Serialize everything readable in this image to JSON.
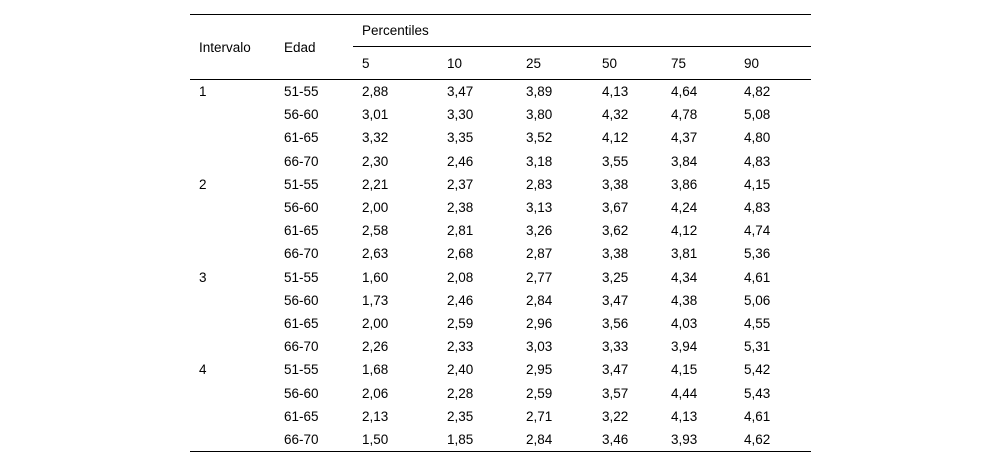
{
  "page": {
    "background": "#ffffff",
    "text_color": "#000000"
  },
  "table": {
    "headers": {
      "intervalo": "Intervalo",
      "edad": "Edad",
      "percentiles_group": "Percentiles",
      "percentile_levels": [
        "5",
        "10",
        "25",
        "50",
        "75",
        "90"
      ]
    },
    "rows": [
      {
        "intervalo": "1",
        "edad": "51-55",
        "values": [
          "2,88",
          "3,47",
          "3,89",
          "4,13",
          "4,64",
          "4,82"
        ]
      },
      {
        "intervalo": "",
        "edad": "56-60",
        "values": [
          "3,01",
          "3,30",
          "3,80",
          "4,32",
          "4,78",
          "5,08"
        ]
      },
      {
        "intervalo": "",
        "edad": "61-65",
        "values": [
          "3,32",
          "3,35",
          "3,52",
          "4,12",
          "4,37",
          "4,80"
        ]
      },
      {
        "intervalo": "",
        "edad": "66-70",
        "values": [
          "2,30",
          "2,46",
          "3,18",
          "3,55",
          "3,84",
          "4,83"
        ]
      },
      {
        "intervalo": "2",
        "edad": "51-55",
        "values": [
          "2,21",
          "2,37",
          "2,83",
          "3,38",
          "3,86",
          "4,15"
        ]
      },
      {
        "intervalo": "",
        "edad": "56-60",
        "values": [
          "2,00",
          "2,38",
          "3,13",
          "3,67",
          "4,24",
          "4,83"
        ]
      },
      {
        "intervalo": "",
        "edad": "61-65",
        "values": [
          "2,58",
          "2,81",
          "3,26",
          "3,62",
          "4,12",
          "4,74"
        ]
      },
      {
        "intervalo": "",
        "edad": "66-70",
        "values": [
          "2,63",
          "2,68",
          "2,87",
          "3,38",
          "3,81",
          "5,36"
        ]
      },
      {
        "intervalo": "3",
        "edad": "51-55",
        "values": [
          "1,60",
          "2,08",
          "2,77",
          "3,25",
          "4,34",
          "4,61"
        ]
      },
      {
        "intervalo": "",
        "edad": "56-60",
        "values": [
          "1,73",
          "2,46",
          "2,84",
          "3,47",
          "4,38",
          "5,06"
        ]
      },
      {
        "intervalo": "",
        "edad": "61-65",
        "values": [
          "2,00",
          "2,59",
          "2,96",
          "3,56",
          "4,03",
          "4,55"
        ]
      },
      {
        "intervalo": "",
        "edad": "66-70",
        "values": [
          "2,26",
          "2,33",
          "3,03",
          "3,33",
          "3,94",
          "5,31"
        ]
      },
      {
        "intervalo": "4",
        "edad": "51-55",
        "values": [
          "1,68",
          "2,40",
          "2,95",
          "3,47",
          "4,15",
          "5,42"
        ]
      },
      {
        "intervalo": "",
        "edad": "56-60",
        "values": [
          "2,06",
          "2,28",
          "2,59",
          "3,57",
          "4,44",
          "5,43"
        ]
      },
      {
        "intervalo": "",
        "edad": "61-65",
        "values": [
          "2,13",
          "2,35",
          "2,71",
          "3,22",
          "4,13",
          "4,61"
        ]
      },
      {
        "intervalo": "",
        "edad": "66-70",
        "values": [
          "1,50",
          "1,85",
          "2,84",
          "3,46",
          "3,93",
          "4,62"
        ]
      }
    ]
  }
}
